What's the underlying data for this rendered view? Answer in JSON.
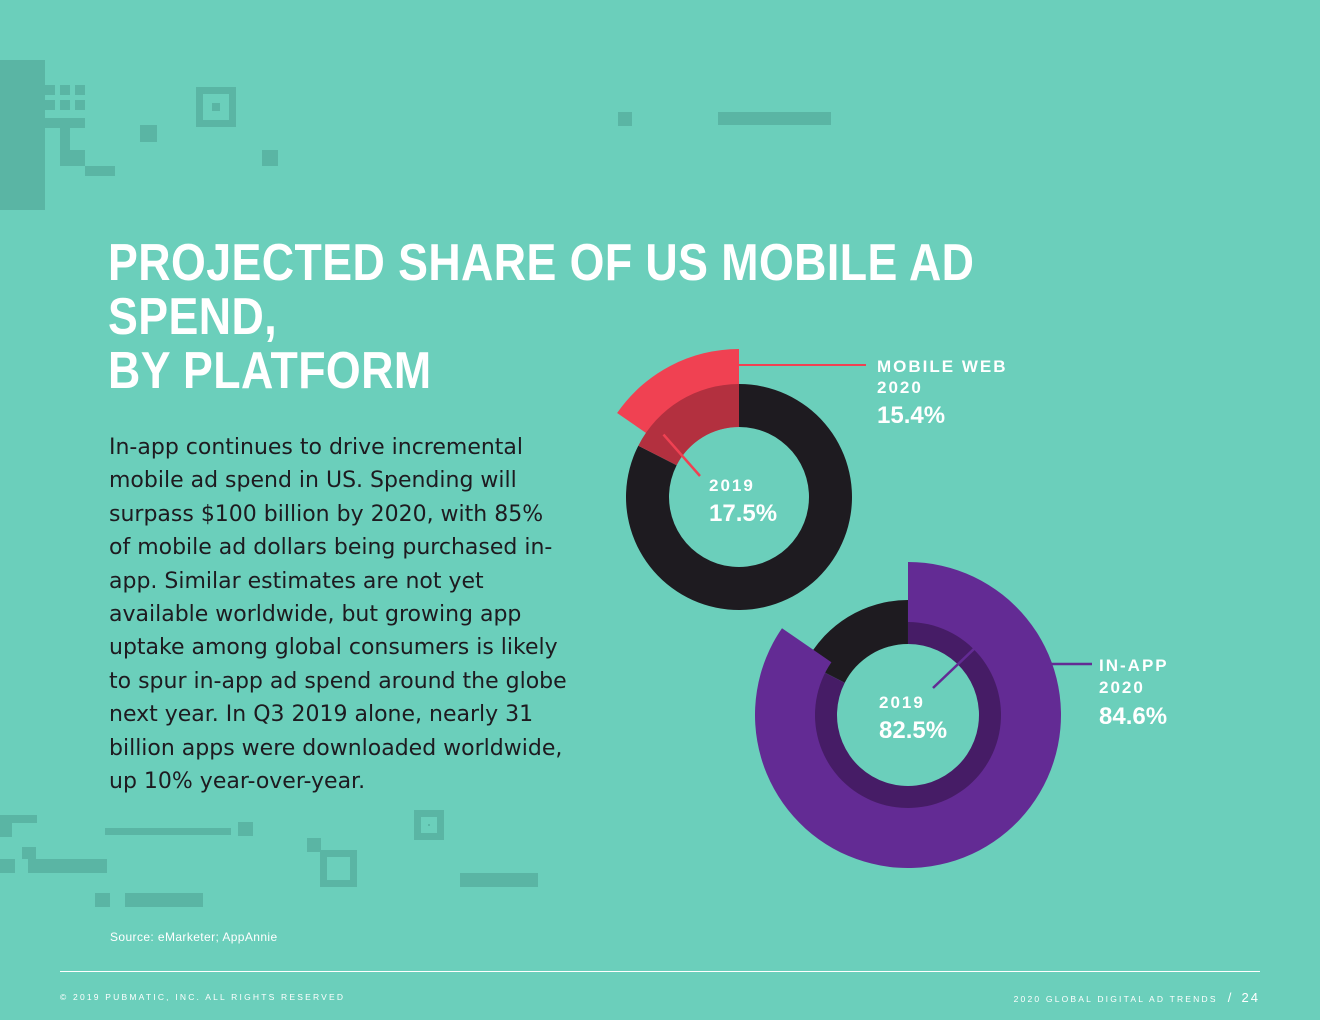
{
  "title_lines": [
    "PROJECTED SHARE OF US MOBILE AD SPEND,",
    "BY PLATFORM"
  ],
  "body": "In-app continues to drive incremental mobile ad spend in US. Spending will surpass $100 billion by 2020, with 85% of mobile ad dollars being purchased in-app. Similar estimates are not yet available worldwide, but growing app uptake among global consumers is likely to spur in-app ad spend around the globe next year. In Q3 2019 alone, nearly 31 billion apps were downloaded worldwide, up 10% year-over-year.",
  "source": "Source: eMarketer; AppAnnie",
  "footer": {
    "copyright": "© 2019 PUBMATIC, INC. ALL RIGHTS RESERVED",
    "publication": "2020 GLOBAL DIGITAL AD TRENDS",
    "separator": "/",
    "page": "24"
  },
  "colors": {
    "background": "#6bcfbb",
    "mobile_web": "#f04152",
    "mobile_web_2019": "#b3303f",
    "in_app": "#632b94",
    "in_app_2019": "#461c66",
    "remainder": "#1e1b20",
    "text": "#ffffff"
  },
  "chart_data": [
    {
      "type": "pie",
      "title": "MOBILE WEB",
      "series": [
        {
          "name": "2019",
          "value": 17.5,
          "value_label": "17.5%"
        },
        {
          "name": "2020",
          "value": 15.4,
          "value_label": "15.4%"
        }
      ],
      "labels": {
        "name": "MOBILE WEB",
        "year_2020": "2020",
        "year_2019": "2019"
      }
    },
    {
      "type": "pie",
      "title": "IN-APP",
      "series": [
        {
          "name": "2019",
          "value": 82.5,
          "value_label": "82.5%"
        },
        {
          "name": "2020",
          "value": 84.6,
          "value_label": "84.6%"
        }
      ],
      "labels": {
        "name": "IN-APP",
        "year_2020": "2020",
        "year_2019": "2019"
      }
    }
  ]
}
